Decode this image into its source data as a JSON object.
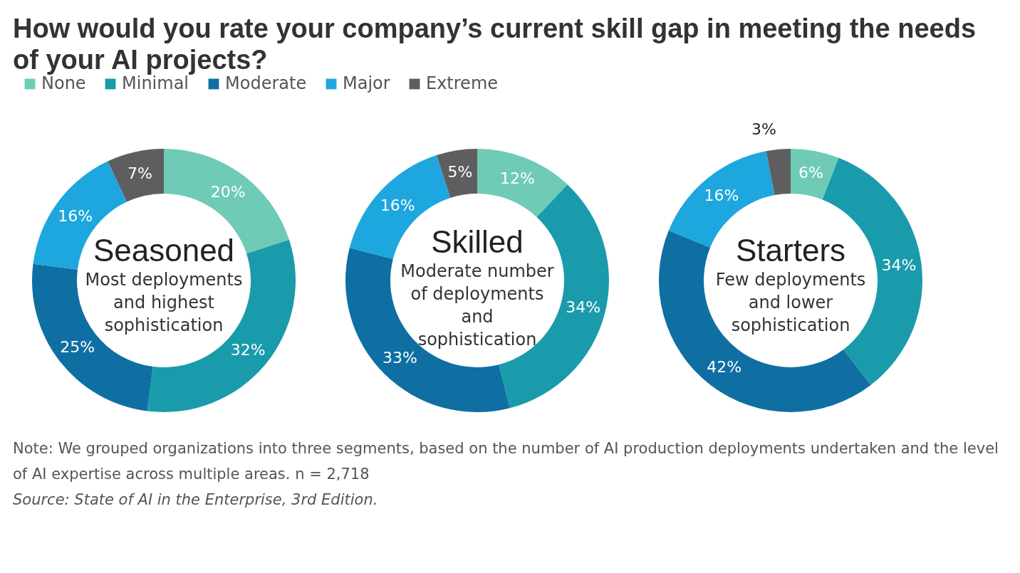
{
  "chart_data": [
    {
      "type": "other",
      "title": "How would you rate your company’s current skill gap in meeting the needs of your AI projects?"
    },
    {
      "type": "donut",
      "title": "Seasoned",
      "subtitle": "Most deployments and highest sophistication",
      "legend": "top right",
      "categories": [
        "None",
        "Minimal",
        "Moderate",
        "Major",
        "Extreme"
      ],
      "values": [
        20,
        32,
        25,
        16,
        7
      ],
      "value_labels": [
        "20%",
        "32%",
        "25%",
        "16%",
        "7%"
      ],
      "colors": [
        "#6fcbb5",
        "#1a9bab",
        "#0f6fa3",
        "#1ea6de",
        "#5e5e60"
      ]
    },
    {
      "type": "donut",
      "title": "Skilled",
      "subtitle": "Moderate number of deployments and sophistication",
      "categories": [
        null,
        null,
        null,
        null,
        null
      ],
      "values": [
        12,
        34,
        33,
        16,
        5
      ],
      "value_labels": [
        "12%",
        "34%",
        "33%",
        "16%",
        "5%"
      ],
      "colors": [
        "#6fcbb5",
        "#1a9bab",
        "#0f6fa3",
        "#1ea6de",
        "#5e5e60"
      ]
    },
    {
      "type": "donut",
      "title": "Starters",
      "subtitle": "Few deployments and lower sophistication",
      "categories": [
        null,
        null,
        null,
        null,
        null
      ],
      "values": [
        6,
        34,
        42,
        16,
        3
      ],
      "value_labels": [
        "6%",
        "34%",
        "42%",
        "16%",
        "3%"
      ],
      "colors": [
        "#6fcbb5",
        "#1a9bab",
        "#0f6fa3",
        "#1ea6de",
        "#5e5e60"
      ]
    },
    {
      "type": "other",
      "annotations": [
        "Note: We grouped organizations into three segments, based on the number of AI production deployments undertaken and the level of AI expertise across multiple areas. n = 2,718",
        "Source: State of AI in the Enterprise, 3rd Edition."
      ]
    }
  ]
}
